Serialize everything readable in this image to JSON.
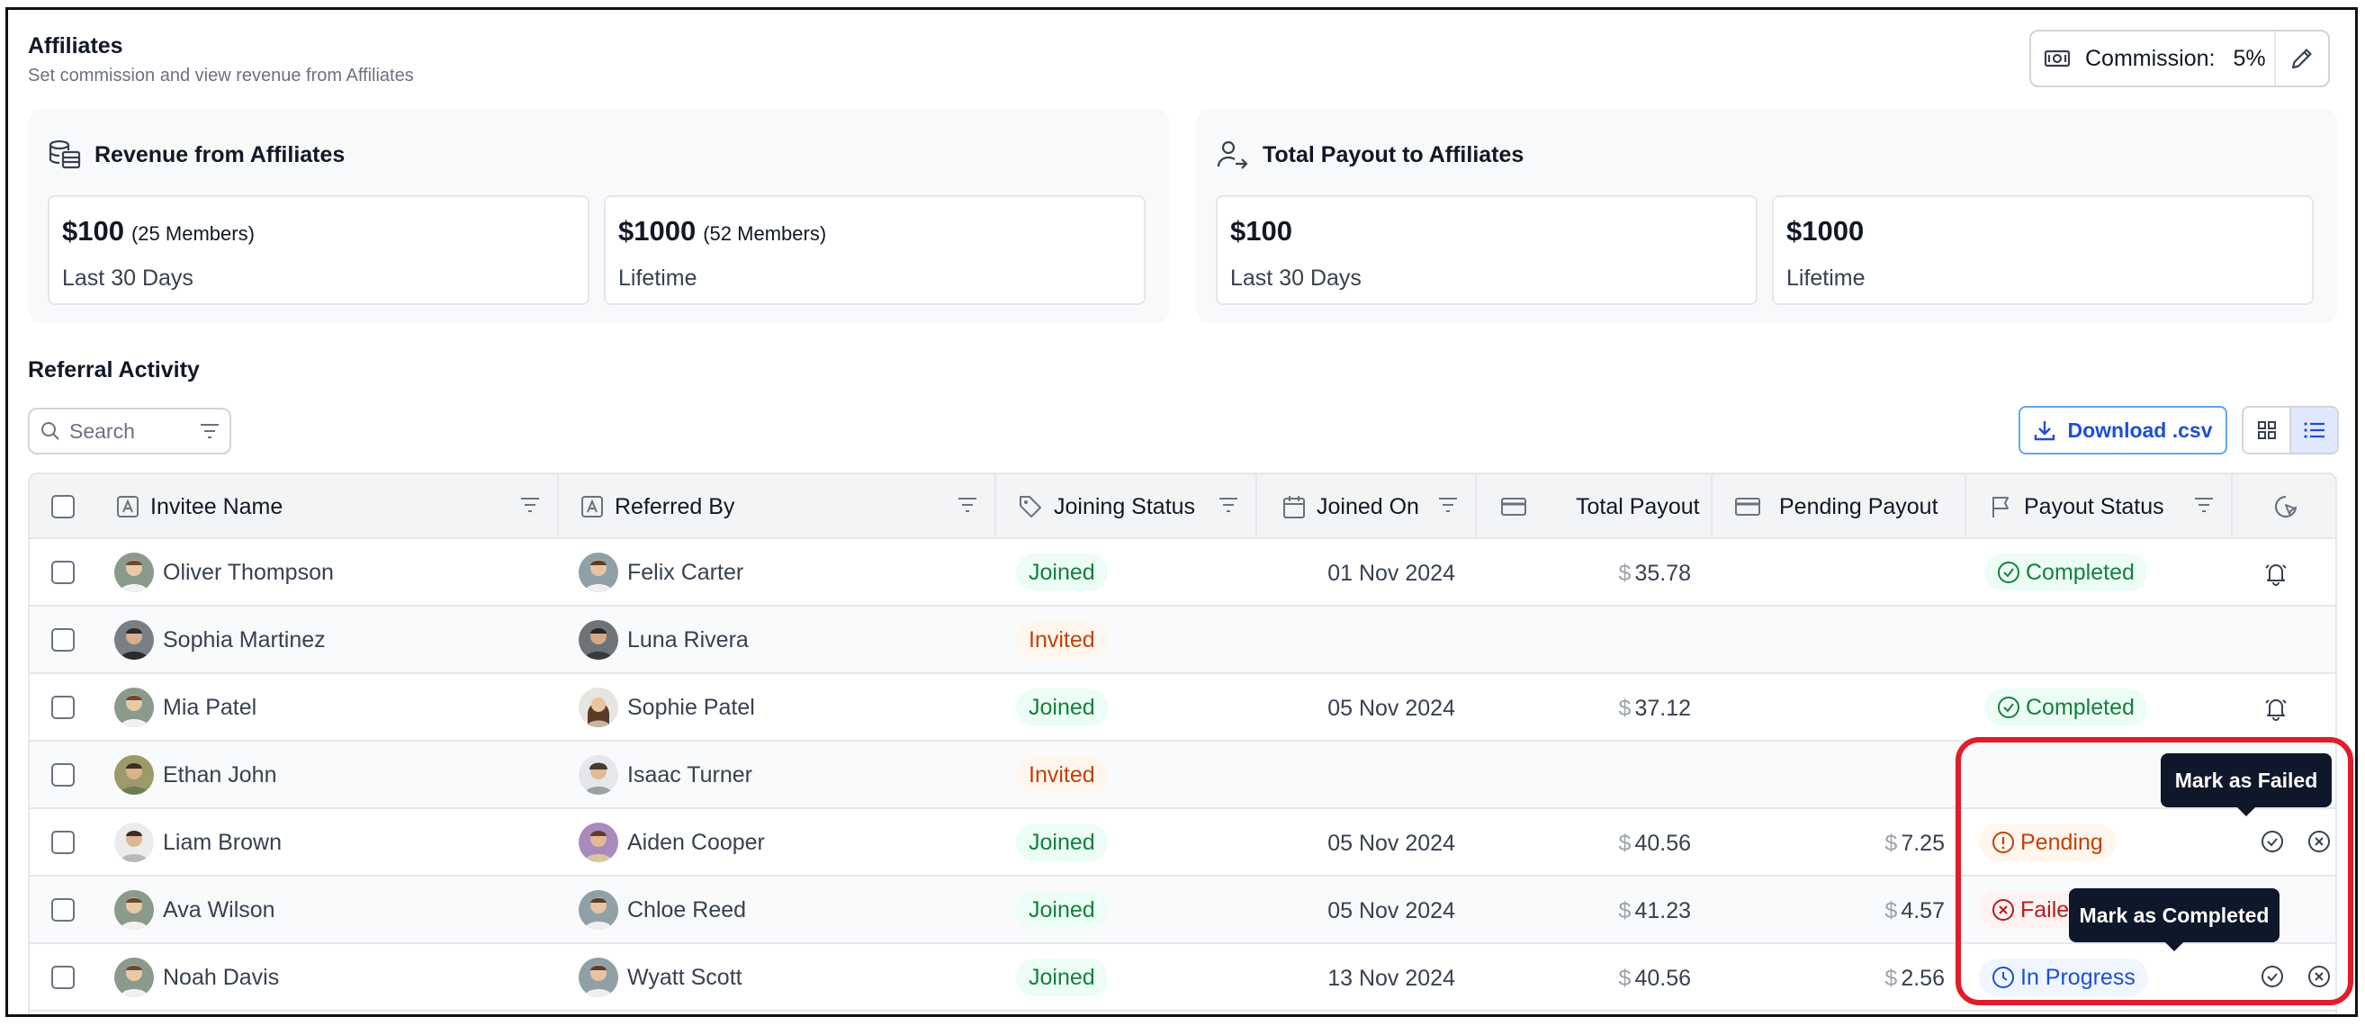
{
  "header": {
    "title": "Affiliates",
    "subtitle": "Set commission and view revenue from Affiliates"
  },
  "commission": {
    "label": "Commission:",
    "value": "5%"
  },
  "revenue": {
    "title": "Revenue from Affiliates",
    "cards": [
      {
        "amount": "$100",
        "members": "(25 Members)",
        "period": "Last 30 Days"
      },
      {
        "amount": "$1000",
        "members": "(52 Members)",
        "period": "Lifetime"
      }
    ]
  },
  "payout": {
    "title": "Total Payout to Affiliates",
    "cards": [
      {
        "amount": "$100",
        "period": "Last 30 Days"
      },
      {
        "amount": "$1000",
        "period": "Lifetime"
      }
    ]
  },
  "activity": {
    "title": "Referral Activity",
    "search_placeholder": "Search",
    "download_label": "Download .csv",
    "columns": [
      "Invitee Name",
      "Referred By",
      "Joining Status",
      "Joined On",
      "Total Payout",
      "Pending Payout",
      "Payout Status"
    ],
    "rows": [
      {
        "invitee": "Oliver Thompson",
        "referrer": "Felix Carter",
        "joining": "Joined",
        "joined_on": "01 Nov 2024",
        "total": "35.78",
        "pending": "",
        "payout_status": "Completed"
      },
      {
        "invitee": "Sophia Martinez",
        "referrer": "Luna Rivera",
        "joining": "Invited",
        "joined_on": "",
        "total": "",
        "pending": "",
        "payout_status": ""
      },
      {
        "invitee": "Mia Patel",
        "referrer": "Sophie Patel",
        "joining": "Joined",
        "joined_on": "05 Nov 2024",
        "total": "37.12",
        "pending": "",
        "payout_status": "Completed"
      },
      {
        "invitee": "Ethan John",
        "referrer": "Isaac Turner",
        "joining": "Invited",
        "joined_on": "",
        "total": "",
        "pending": "",
        "payout_status": ""
      },
      {
        "invitee": "Liam Brown",
        "referrer": "Aiden Cooper",
        "joining": "Joined",
        "joined_on": "05 Nov 2024",
        "total": "40.56",
        "pending": "7.25",
        "payout_status": "Pending"
      },
      {
        "invitee": "Ava Wilson",
        "referrer": "Chloe Reed",
        "joining": "Joined",
        "joined_on": "05 Nov 2024",
        "total": "41.23",
        "pending": "4.57",
        "payout_status": "Failed"
      },
      {
        "invitee": "Noah Davis",
        "referrer": "Wyatt Scott",
        "joining": "Joined",
        "joined_on": "13 Nov 2024",
        "total": "40.56",
        "pending": "2.56",
        "payout_status": "In Progress"
      }
    ],
    "currency_symbol": "$"
  },
  "tooltips": {
    "mark_failed": "Mark as Failed",
    "mark_completed": "Mark as Completed"
  },
  "colors": {
    "accent": "#1d4ed8",
    "highlight": "#e11d2a",
    "success": "#15803d",
    "warning": "#c2410c",
    "danger": "#b91c1c"
  }
}
